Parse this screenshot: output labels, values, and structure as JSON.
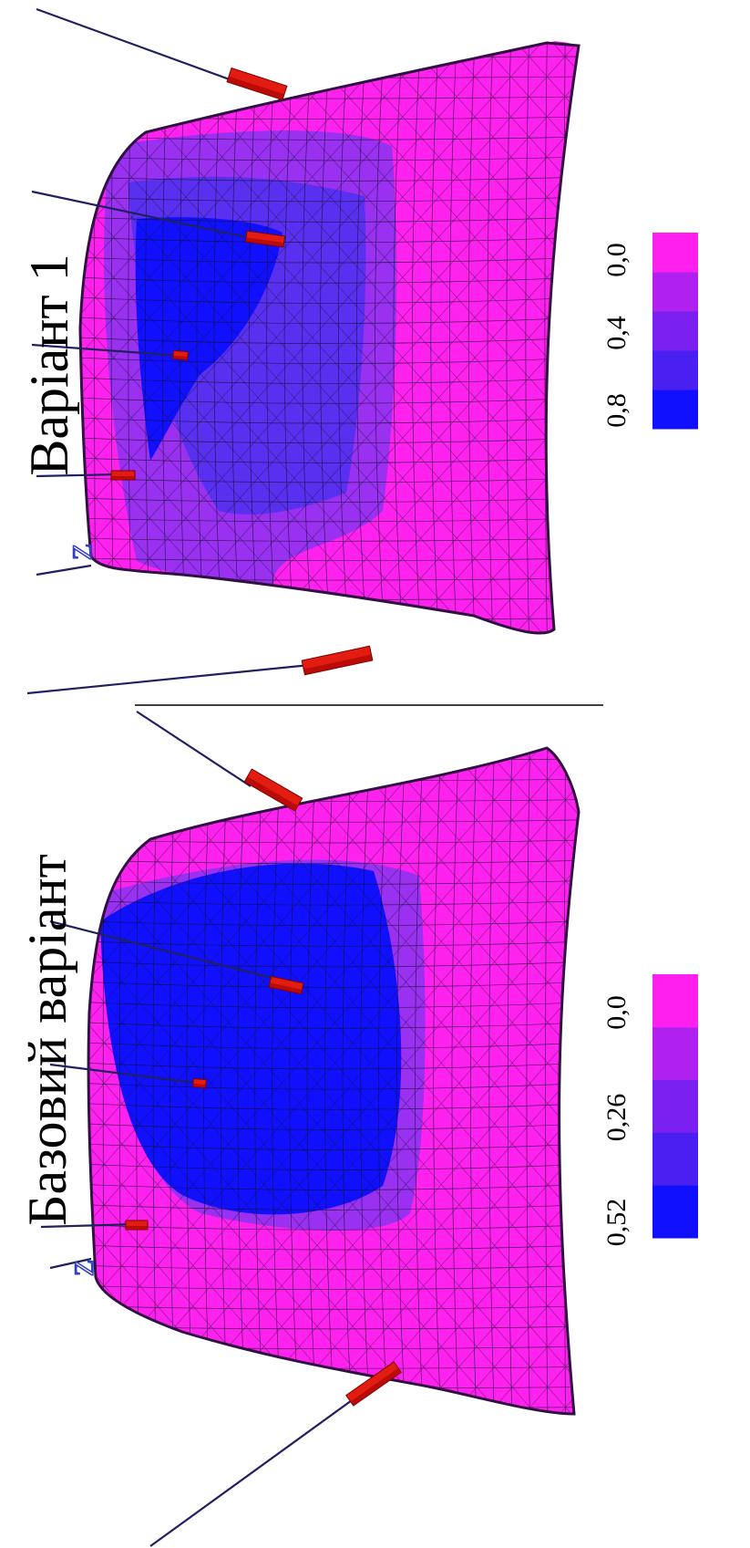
{
  "panels": [
    {
      "id": "variant-1",
      "title": "Варіант 1",
      "axis_label": "Z",
      "legend": {
        "labels": [
          "0,8",
          "0,4",
          "0,0"
        ],
        "levels": 5,
        "colors": [
          "#1010ff",
          "#4a20f0",
          "#7a20f0",
          "#b020f0",
          "#ff20f0"
        ]
      },
      "field_colors": {
        "max": "#1010ff",
        "high": "#5a30f0",
        "mid": "#9a30f0",
        "zero": "#ff22ee"
      },
      "insert_color": "#e21c10"
    },
    {
      "id": "base-variant",
      "title": "Базовий варіант",
      "axis_label": "Z",
      "legend": {
        "labels": [
          "0,52",
          "0,26",
          "0,0"
        ],
        "levels": 5,
        "colors": [
          "#1010ff",
          "#4a20f0",
          "#7a20f0",
          "#b020f0",
          "#ff20f0"
        ]
      },
      "field_colors": {
        "max": "#1010ff",
        "high": "#5a30f0",
        "mid": "#9a30f0",
        "zero": "#ff22ee"
      },
      "insert_color": "#e21c10"
    }
  ]
}
